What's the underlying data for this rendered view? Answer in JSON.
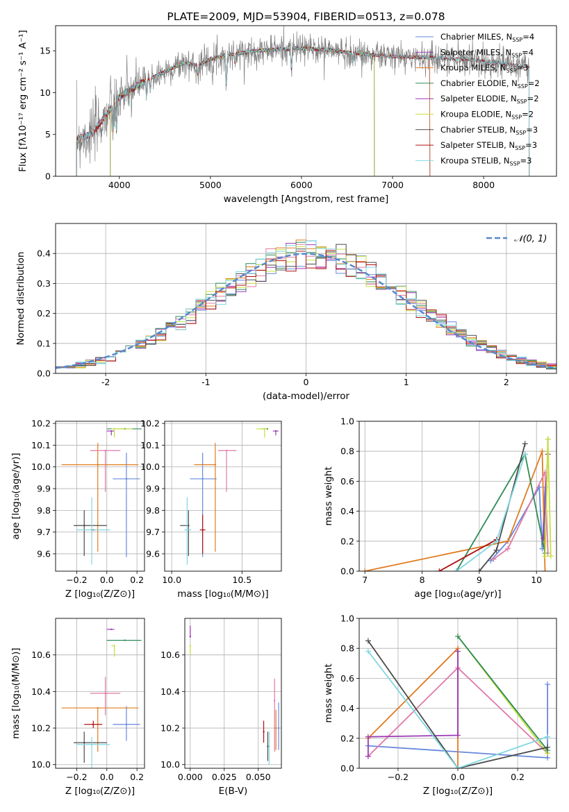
{
  "colors": {
    "chabrier_miles": "#6688dd",
    "salpeter_miles": "#9b39b5",
    "kroupa_miles": "#e07b1e",
    "chabrier_elodie": "#2e8b57",
    "salpeter_elodie": "#9b30b0",
    "kroupa_elodie": "#c6e03c",
    "chabrier_stelib": "#4a4a4a",
    "salpeter_stelib": "#b01010",
    "kroupa_stelib": "#7fd6e0",
    "data": "#808080",
    "gauss": "#5588cc",
    "pink": "#e07aa8",
    "grid": "#b0b0b0"
  },
  "chart_data": [
    {
      "id": "spectrum",
      "type": "line",
      "title": "PLATE=2009, MJD=53904, FIBERID=0513, z=0.078",
      "xlabel": "wavelength [Angstrom, rest frame]",
      "ylabel": "Flux [fλ10⁻¹⁷ erg cm⁻² s⁻¹ A⁻¹]",
      "xlim": [
        3300,
        8800
      ],
      "ylim": [
        0,
        18
      ],
      "xticks": [
        4000,
        5000,
        6000,
        7000,
        8000
      ],
      "yticks": [
        0,
        5,
        10,
        15
      ],
      "legend_position": "right",
      "legend": [
        {
          "name": "Chabrier MILES, N",
          "sub": "SSP",
          "suffix": "=4",
          "color_key": "chabrier_miles"
        },
        {
          "name": "Salpeter MILES, N",
          "sub": "SSP",
          "suffix": "=4",
          "color_key": "salpeter_miles"
        },
        {
          "name": "Kroupa MILES, N",
          "sub": "SSP",
          "suffix": "=3",
          "color_key": "kroupa_miles"
        },
        {
          "name": "Chabrier ELODIE, N",
          "sub": "SSP",
          "suffix": "=2",
          "color_key": "chabrier_elodie"
        },
        {
          "name": "Salpeter ELODIE, N",
          "sub": "SSP",
          "suffix": "=2",
          "color_key": "salpeter_elodie"
        },
        {
          "name": "Kroupa ELODIE, N",
          "sub": "SSP",
          "suffix": "=2",
          "color_key": "kroupa_elodie"
        },
        {
          "name": "Chabrier STELIB, N",
          "sub": "SSP",
          "suffix": "=3",
          "color_key": "chabrier_stelib"
        },
        {
          "name": "Salpeter STELIB, N",
          "sub": "SSP",
          "suffix": "=3",
          "color_key": "salpeter_stelib"
        },
        {
          "name": "Kroupa STELIB, N",
          "sub": "SSP",
          "suffix": "=3",
          "color_key": "kroupa_stelib"
        }
      ],
      "continuum_knots": [
        [
          3530,
          4.5
        ],
        [
          3700,
          5.0
        ],
        [
          3800,
          6.5
        ],
        [
          3900,
          8.0
        ],
        [
          4000,
          9.5
        ],
        [
          4100,
          10.2
        ],
        [
          4300,
          11.5
        ],
        [
          4500,
          12.5
        ],
        [
          4700,
          13.5
        ],
        [
          4860,
          13.3
        ],
        [
          5000,
          14.0
        ],
        [
          5200,
          14.5
        ],
        [
          5500,
          15.0
        ],
        [
          5800,
          15.2
        ],
        [
          6000,
          15.3
        ],
        [
          6300,
          15.1
        ],
        [
          6500,
          14.8
        ],
        [
          6800,
          14.5
        ],
        [
          7000,
          14.3
        ],
        [
          7400,
          14.2
        ],
        [
          7800,
          14.0
        ],
        [
          8200,
          13.5
        ],
        [
          8500,
          13.0
        ],
        [
          8800,
          12.2
        ]
      ],
      "absorption_lines": [
        [
          3934,
          3.0
        ],
        [
          3969,
          3.5
        ],
        [
          4102,
          1.5
        ],
        [
          4300,
          2.0
        ],
        [
          4340,
          1.5
        ],
        [
          4861,
          1.2
        ],
        [
          5175,
          3.5
        ],
        [
          5270,
          1.0
        ],
        [
          5890,
          2.5
        ],
        [
          6563,
          1.0
        ]
      ]
    },
    {
      "id": "residuals",
      "type": "bar",
      "xlabel": "(data-model)/error",
      "ylabel": "Normed distribution",
      "xlim": [
        -2.5,
        2.5
      ],
      "ylim": [
        0,
        0.5
      ],
      "xticks": [
        -2,
        -1,
        0,
        1,
        2
      ],
      "yticks": [
        0.0,
        0.1,
        0.2,
        0.3,
        0.4
      ],
      "legend": [
        {
          "name": "𝒩(0, 1)",
          "color_key": "gauss"
        }
      ],
      "legend_position": "top-right",
      "bin_width": 0.1
    },
    {
      "id": "age_vs_Z",
      "type": "scatter",
      "xlabel": "Z [log₁₀(Z/Z⊙)]",
      "ylabel": "age  [log₁₀(age/yr)]",
      "xlim": [
        -0.34,
        0.25
      ],
      "ylim": [
        9.52,
        10.21
      ],
      "xticks": [
        -0.2,
        0.0,
        0.2
      ],
      "yticks": [
        9.6,
        9.7,
        9.8,
        9.9,
        10.0,
        10.1,
        10.2
      ],
      "points": [
        {
          "c": "chabrier_miles",
          "x": 0.13,
          "xm": 0.09,
          "xp": 0.09,
          "y": 9.945,
          "ym": 0.36,
          "yp": 0.12
        },
        {
          "c": "kroupa_miles",
          "x": -0.06,
          "xm": 0.24,
          "xp": 0.27,
          "y": 10.01,
          "ym": 0.4,
          "yp": 0.1
        },
        {
          "c": "pink",
          "x": -0.01,
          "xm": 0.1,
          "xp": 0.1,
          "y": 10.075,
          "ym": 0.19,
          "yp": 0.0
        },
        {
          "c": "chabrier_elodie",
          "x": 0.12,
          "xm": 0.12,
          "xp": 0.11,
          "y": 10.175,
          "ym": 0.0,
          "yp": 0.0
        },
        {
          "c": "salpeter_miles",
          "x": 0.03,
          "xm": 0.03,
          "xp": 0.02,
          "y": 10.165,
          "ym": 0.02,
          "yp": 0.0
        },
        {
          "c": "kroupa_elodie",
          "x": 0.05,
          "xm": 0.02,
          "xp": 0.12,
          "y": 10.175,
          "ym": 0.04,
          "yp": 0.0
        },
        {
          "c": "chabrier_stelib",
          "x": -0.15,
          "xm": 0.07,
          "xp": 0.15,
          "y": 9.73,
          "ym": 0.14,
          "yp": 0.07
        },
        {
          "c": "salpeter_stelib",
          "x": -0.09,
          "xm": 0.02,
          "xp": 0.02,
          "y": 9.71,
          "ym": 0.0,
          "yp": 0.0
        },
        {
          "c": "kroupa_stelib",
          "x": -0.1,
          "xm": 0.1,
          "xp": 0.12,
          "y": 9.71,
          "ym": 0.16,
          "yp": 0.15
        }
      ]
    },
    {
      "id": "age_vs_mass",
      "type": "scatter",
      "xlabel": "mass [log₁₀(M/M⊙)]",
      "ylabel": "",
      "xlim": [
        9.95,
        10.78
      ],
      "ylim": [
        9.52,
        10.21
      ],
      "xticks": [
        10.0,
        10.5
      ],
      "yticks": [
        9.6,
        9.7,
        9.8,
        9.9,
        10.0,
        10.1,
        10.2
      ],
      "points": [
        {
          "c": "chabrier_miles",
          "x": 10.22,
          "xm": 0.09,
          "xp": 0.1,
          "y": 9.945,
          "ym": 0.36,
          "yp": 0.12
        },
        {
          "c": "kroupa_miles",
          "x": 10.31,
          "xm": 0.15,
          "xp": 0.0,
          "y": 10.01,
          "ym": 0.4,
          "yp": 0.1
        },
        {
          "c": "pink",
          "x": 10.39,
          "xm": 0.06,
          "xp": 0.07,
          "y": 10.075,
          "ym": 0.19,
          "yp": 0.0
        },
        {
          "c": "chabrier_elodie",
          "x": 10.68,
          "xm": 0.04,
          "xp": 0.0,
          "y": 10.175,
          "ym": 0.0,
          "yp": 0.0
        },
        {
          "c": "salpeter_miles",
          "x": 10.74,
          "xm": 0.02,
          "xp": 0.02,
          "y": 10.165,
          "ym": 0.02,
          "yp": 0.0
        },
        {
          "c": "kroupa_elodie",
          "x": 10.66,
          "xm": 0.06,
          "xp": 0.02,
          "y": 10.175,
          "ym": 0.04,
          "yp": 0.0
        },
        {
          "c": "chabrier_stelib",
          "x": 10.12,
          "xm": 0.06,
          "xp": 0.0,
          "y": 9.73,
          "ym": 0.14,
          "yp": 0.07
        },
        {
          "c": "salpeter_stelib",
          "x": 10.22,
          "xm": 0.02,
          "xp": 0.02,
          "y": 9.71,
          "ym": 0.11,
          "yp": 0.07
        },
        {
          "c": "kroupa_stelib",
          "x": 10.11,
          "xm": 0.02,
          "xp": 0.03,
          "y": 9.71,
          "ym": 0.16,
          "yp": 0.15
        }
      ]
    },
    {
      "id": "weight_vs_age",
      "type": "line",
      "xlabel": "age  [log₁₀(age/yr)]",
      "ylabel": "mass weight",
      "xlim": [
        6.9,
        10.35
      ],
      "ylim": [
        0,
        1.0
      ],
      "xticks": [
        7,
        8,
        9,
        10
      ],
      "yticks": [
        0.0,
        0.2,
        0.4,
        0.6,
        0.8,
        1.0
      ],
      "series": [
        {
          "c": "chabrier_miles",
          "x": [
            9.2,
            9.5,
            10.05,
            10.1,
            10.15
          ],
          "y": [
            0.07,
            0.2,
            0.56,
            0.15,
            0.56
          ]
        },
        {
          "c": "kroupa_miles",
          "x": [
            7.0,
            9.5,
            10.1,
            10.15
          ],
          "y": [
            0.0,
            0.2,
            0.8,
            0.0
          ]
        },
        {
          "c": "pink",
          "x": [
            9.25,
            9.5,
            10.15,
            10.2
          ],
          "y": [
            0.08,
            0.15,
            0.66,
            0.12
          ]
        },
        {
          "c": "chabrier_elodie",
          "x": [
            8.6,
            9.8,
            10.15,
            10.2
          ],
          "y": [
            0.0,
            0.78,
            0.12,
            0.88
          ]
        },
        {
          "c": "salpeter_miles",
          "x": [
            10.12,
            10.2
          ],
          "y": [
            0.22,
            0.78
          ]
        },
        {
          "c": "kroupa_elodie",
          "x": [
            10.15,
            10.2,
            10.25
          ],
          "y": [
            0.1,
            0.88,
            0.1
          ]
        },
        {
          "c": "chabrier_stelib",
          "x": [
            9.0,
            9.3,
            9.8
          ],
          "y": [
            0.0,
            0.14,
            0.85
          ]
        },
        {
          "c": "salpeter_stelib",
          "x": [
            8.3,
            9.3
          ],
          "y": [
            0.0,
            0.21
          ]
        },
        {
          "c": "kroupa_stelib",
          "x": [
            8.6,
            9.3,
            9.8
          ],
          "y": [
            0.0,
            0.2,
            0.78
          ]
        }
      ]
    },
    {
      "id": "mass_vs_Z",
      "type": "scatter",
      "xlabel": "Z [log₁₀(Z/Z⊙)]",
      "ylabel": "mass [log₁₀(M/M⊙)]",
      "xlim": [
        -0.34,
        0.25
      ],
      "ylim": [
        9.98,
        10.8
      ],
      "xticks": [
        -0.2,
        0.0,
        0.2
      ],
      "yticks": [
        10.0,
        10.2,
        10.4,
        10.6
      ],
      "points": [
        {
          "c": "chabrier_miles",
          "x": 0.13,
          "xm": 0.09,
          "xp": 0.09,
          "y": 10.22,
          "ym": 0.09,
          "yp": 0.1
        },
        {
          "c": "kroupa_miles",
          "x": -0.06,
          "xm": 0.24,
          "xp": 0.27,
          "y": 10.31,
          "ym": 0.24,
          "yp": 0.0
        },
        {
          "c": "pink",
          "x": -0.01,
          "xm": 0.1,
          "xp": 0.1,
          "y": 10.39,
          "ym": 0.12,
          "yp": 0.09
        },
        {
          "c": "chabrier_elodie",
          "x": 0.12,
          "xm": 0.12,
          "xp": 0.11,
          "y": 10.68,
          "ym": 0.0,
          "yp": 0.0
        },
        {
          "c": "salpeter_miles",
          "x": 0.03,
          "xm": 0.03,
          "xp": 0.02,
          "y": 10.74,
          "ym": 0.0,
          "yp": 0.0
        },
        {
          "c": "kroupa_elodie",
          "x": 0.05,
          "xm": 0.02,
          "xp": 0.0,
          "y": 10.65,
          "ym": 0.06,
          "yp": 0.0
        },
        {
          "c": "chabrier_stelib",
          "x": -0.15,
          "xm": 0.07,
          "xp": 0.15,
          "y": 10.12,
          "ym": 0.11,
          "yp": 0.06
        },
        {
          "c": "salpeter_stelib",
          "x": -0.09,
          "xm": 0.06,
          "xp": 0.06,
          "y": 10.22,
          "ym": 0.02,
          "yp": 0.02
        },
        {
          "c": "kroupa_stelib",
          "x": -0.1,
          "xm": 0.1,
          "xp": 0.12,
          "y": 10.11,
          "ym": 0.13,
          "yp": 0.04
        }
      ]
    },
    {
      "id": "mass_vs_ebv",
      "type": "scatter",
      "xlabel": "E(B-V)",
      "ylabel": "",
      "xlim": [
        -0.004,
        0.067
      ],
      "ylim": [
        9.98,
        10.8
      ],
      "xticks": [
        0.0,
        0.025,
        0.05
      ],
      "xticklabels": [
        "0.000",
        "0.025",
        "0.050"
      ],
      "yticks": [
        10.0,
        10.2,
        10.4,
        10.6
      ],
      "points": [
        {
          "c": "salpeter_elodie",
          "x": 0.0,
          "xm": 0,
          "xp": 0,
          "y": 10.7,
          "ym": 0.0,
          "yp": 0.06
        },
        {
          "c": "kroupa_elodie",
          "x": 0.0,
          "xm": 0,
          "xp": 0,
          "y": 10.65,
          "ym": 0.05,
          "yp": 0.0
        },
        {
          "c": "salpeter_stelib",
          "x": 0.054,
          "xm": 0,
          "xp": 0,
          "y": 10.18,
          "ym": 0.06,
          "yp": 0.06
        },
        {
          "c": "chabrier_stelib",
          "x": 0.057,
          "xm": 0,
          "xp": 0,
          "y": 10.1,
          "ym": 0.08,
          "yp": 0.08
        },
        {
          "c": "kroupa_stelib",
          "x": 0.058,
          "xm": 0,
          "xp": 0,
          "y": 10.1,
          "ym": 0.1,
          "yp": 0.08
        },
        {
          "c": "pink",
          "x": 0.062,
          "xm": 0,
          "xp": 0,
          "y": 10.35,
          "ym": 0.28,
          "yp": 0.12
        },
        {
          "c": "kroupa_miles",
          "x": 0.063,
          "xm": 0,
          "xp": 0,
          "y": 10.2,
          "ym": 0.12,
          "yp": 0.1
        },
        {
          "c": "chabrier_miles",
          "x": 0.065,
          "xm": 0,
          "xp": 0,
          "y": 10.2,
          "ym": 0.12,
          "yp": 0.14
        }
      ]
    },
    {
      "id": "weight_vs_Z",
      "type": "line",
      "xlabel": "Z [log₁₀(Z/Z⊙)]",
      "ylabel": "mass weight",
      "xlim": [
        -0.33,
        0.33
      ],
      "ylim": [
        0,
        1.0
      ],
      "xticks": [
        -0.2,
        0.0,
        0.2
      ],
      "yticks": [
        0.0,
        0.2,
        0.4,
        0.6,
        0.8,
        1.0
      ],
      "series": [
        {
          "c": "chabrier_miles",
          "x": [
            -0.3,
            0.3,
            0.3
          ],
          "y": [
            0.15,
            0.07,
            0.56
          ]
        },
        {
          "c": "kroupa_miles",
          "x": [
            -0.3,
            0.0,
            0.0
          ],
          "y": [
            0.2,
            0.8,
            0.0
          ]
        },
        {
          "c": "pink",
          "x": [
            -0.3,
            0.0,
            0.3
          ],
          "y": [
            0.08,
            0.67,
            0.1
          ]
        },
        {
          "c": "salpeter_miles",
          "x": [
            -0.3,
            -0.3,
            0.0,
            0.0
          ],
          "y": [
            0.08,
            0.21,
            0.22,
            0.78
          ]
        },
        {
          "c": "kroupa_elodie",
          "x": [
            0.0,
            0.3
          ],
          "y": [
            0.88,
            0.1
          ]
        },
        {
          "c": "chabrier_elodie",
          "x": [
            0.0,
            0.3
          ],
          "y": [
            0.88,
            0.12
          ]
        },
        {
          "c": "chabrier_stelib",
          "x": [
            -0.3,
            0.0,
            0.3
          ],
          "y": [
            0.85,
            0.0,
            0.14
          ]
        },
        {
          "c": "kroupa_stelib",
          "x": [
            -0.3,
            0.0,
            0.3
          ],
          "y": [
            0.78,
            0.0,
            0.21
          ]
        }
      ]
    }
  ]
}
